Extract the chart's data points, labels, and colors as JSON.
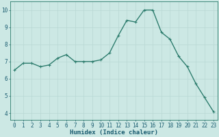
{
  "x": [
    0,
    1,
    2,
    3,
    4,
    5,
    6,
    7,
    8,
    9,
    10,
    11,
    12,
    13,
    14,
    15,
    16,
    17,
    18,
    19,
    20,
    21,
    22,
    23
  ],
  "y": [
    6.5,
    6.9,
    6.9,
    6.7,
    6.8,
    7.2,
    7.4,
    7.0,
    7.0,
    7.0,
    7.1,
    7.5,
    8.5,
    9.4,
    9.3,
    10.0,
    10.0,
    8.7,
    8.3,
    7.3,
    6.7,
    5.7,
    4.9,
    4.1
  ],
  "line_color": "#2e7d6e",
  "marker": "+",
  "marker_size": 3,
  "bg_color": "#cce8e4",
  "grid_color": "#b8d8d4",
  "xlabel": "Humidex (Indice chaleur)",
  "ylabel_ticks": [
    4,
    5,
    6,
    7,
    8,
    9,
    10
  ],
  "xlim": [
    -0.5,
    23.5
  ],
  "ylim": [
    3.6,
    10.5
  ],
  "xlabel_color": "#1a5c70",
  "tick_color": "#1a5c70",
  "spine_color": "#2a7a6a",
  "font_size_label": 6.5,
  "font_size_tick": 5.5,
  "linewidth": 1.0,
  "marker_edge_width": 0.8
}
